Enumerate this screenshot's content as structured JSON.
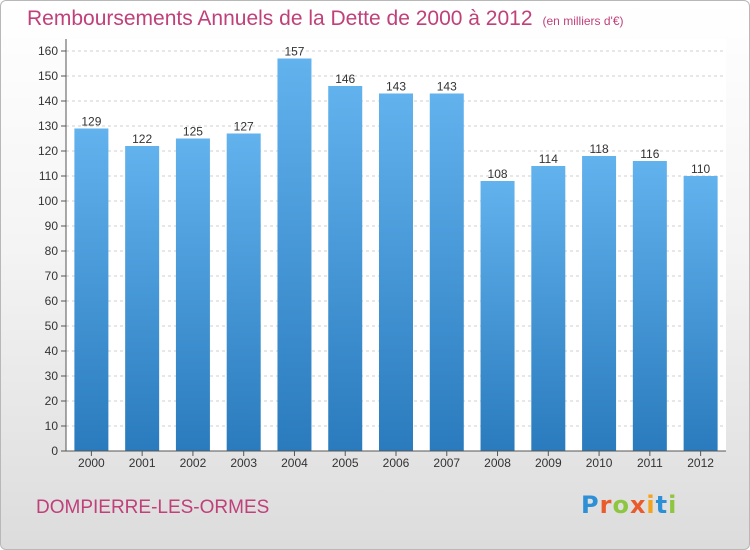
{
  "title": "Remboursements Annuels de la Dette de 2000 à 2012",
  "subtitle": "(en milliers d'€)",
  "commune": "DOMPIERRE-LES-ORMES",
  "logo": {
    "letters": [
      "P",
      "r",
      "o",
      "x",
      "i",
      "t",
      "i"
    ],
    "colors": [
      "#2d8fd5",
      "#e95b2c",
      "#8dc63f",
      "#e95b2c",
      "#f3a41c",
      "#2d8fd5",
      "#8dc63f"
    ]
  },
  "colors": {
    "title": "#c0407a",
    "bar_top": "#62b2ee",
    "bar_bottom": "#2a7bbd"
  },
  "chart_data": {
    "type": "bar",
    "categories": [
      "2000",
      "2001",
      "2002",
      "2003",
      "2004",
      "2005",
      "2006",
      "2007",
      "2008",
      "2009",
      "2010",
      "2011",
      "2012"
    ],
    "values": [
      129,
      122,
      125,
      127,
      157,
      146,
      143,
      143,
      108,
      114,
      118,
      116,
      110
    ],
    "title": "Remboursements Annuels de la Dette de 2000 à 2012",
    "xlabel": "",
    "ylabel": "",
    "ylim": [
      0,
      160
    ],
    "yticks": [
      0,
      10,
      20,
      30,
      40,
      50,
      60,
      70,
      80,
      90,
      100,
      110,
      120,
      130,
      140,
      150,
      160
    ],
    "grid": true,
    "data_labels": true
  }
}
